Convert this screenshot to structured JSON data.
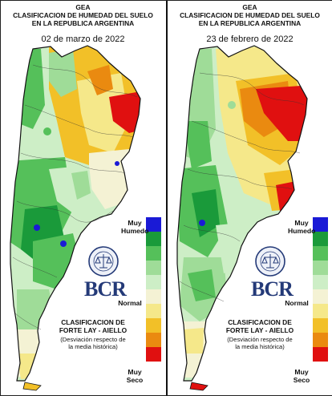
{
  "source": "GEA",
  "title_lines": [
    "CLASIFICACION DE HUMEDAD DEL SUELO",
    "EN LA REPUBLICA ARGENTINA"
  ],
  "maps": [
    {
      "id": "left",
      "date": "02 de marzo de 2022"
    },
    {
      "id": "right",
      "date": "23 de febrero de 2022"
    }
  ],
  "legend": {
    "top_label": [
      "Muy",
      "Humedo"
    ],
    "middle_label": "Normal",
    "bottom_label": [
      "Muy",
      "Seco"
    ],
    "colors": [
      "#1a1ad6",
      "#1a9a3a",
      "#55c05a",
      "#9fdc98",
      "#cdeec6",
      "#f4f2d4",
      "#f5e88a",
      "#f2c028",
      "#ea8a10",
      "#e01010"
    ]
  },
  "logo_text": "BCR",
  "seal_text": "BOLSA DE COMERCIO DE ROSARIO",
  "method_lines": [
    "CLASIFICACION DE",
    "FORTE LAY - AIELLO"
  ],
  "deviation_lines": [
    "(Desviación respecto de",
    "la media histórica)"
  ],
  "colors": {
    "very_dry": "#e01010",
    "dry": "#f2c028",
    "normal": "#f4f2d4",
    "wet": "#55c05a",
    "very_wet": "#1a1ad6",
    "logo": "#243a78"
  }
}
